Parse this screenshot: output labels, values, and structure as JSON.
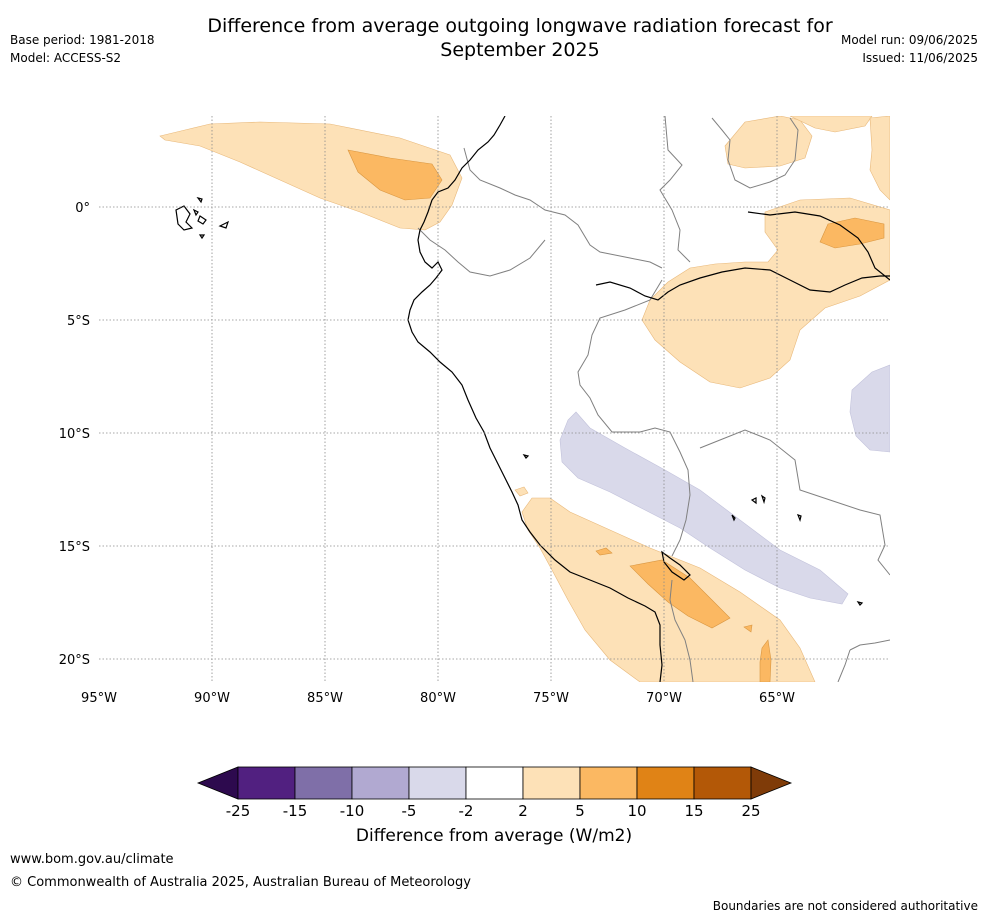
{
  "title_line1": "Difference from average outgoing longwave radiation forecast for",
  "title_line2": "September 2025",
  "meta": {
    "base_period": "Base period: 1981-2018",
    "model": "Model: ACCESS-S2",
    "model_run": "Model run: 09/06/2025",
    "issued": "Issued: 11/06/2025"
  },
  "map": {
    "lon_labels": [
      "95°W",
      "90°W",
      "85°W",
      "80°W",
      "75°W",
      "70°W",
      "65°W"
    ],
    "lat_labels": [
      "0°",
      "5°S",
      "10°S",
      "15°S",
      "20°S"
    ]
  },
  "colorbar": {
    "title": "Difference from average (W/m2)",
    "ticks": [
      "-25",
      "-15",
      "-10",
      "-5",
      "-2",
      "2",
      "5",
      "10",
      "15",
      "25"
    ],
    "colors": {
      "below_min": "#2d0a4e",
      "bins": [
        "#512080",
        "#7f6fa8",
        "#b1a9d1",
        "#d9d9ea",
        "#ffffff",
        "#fde1b7",
        "#fbb862",
        "#e08316",
        "#b35807"
      ],
      "above_max": "#7f3b08"
    }
  },
  "footer": {
    "url": "www.bom.gov.au/climate",
    "copyright": "© Commonwealth of Australia 2025, Australian Bureau of Meteorology",
    "note": "Boundaries are not considered authoritative"
  }
}
